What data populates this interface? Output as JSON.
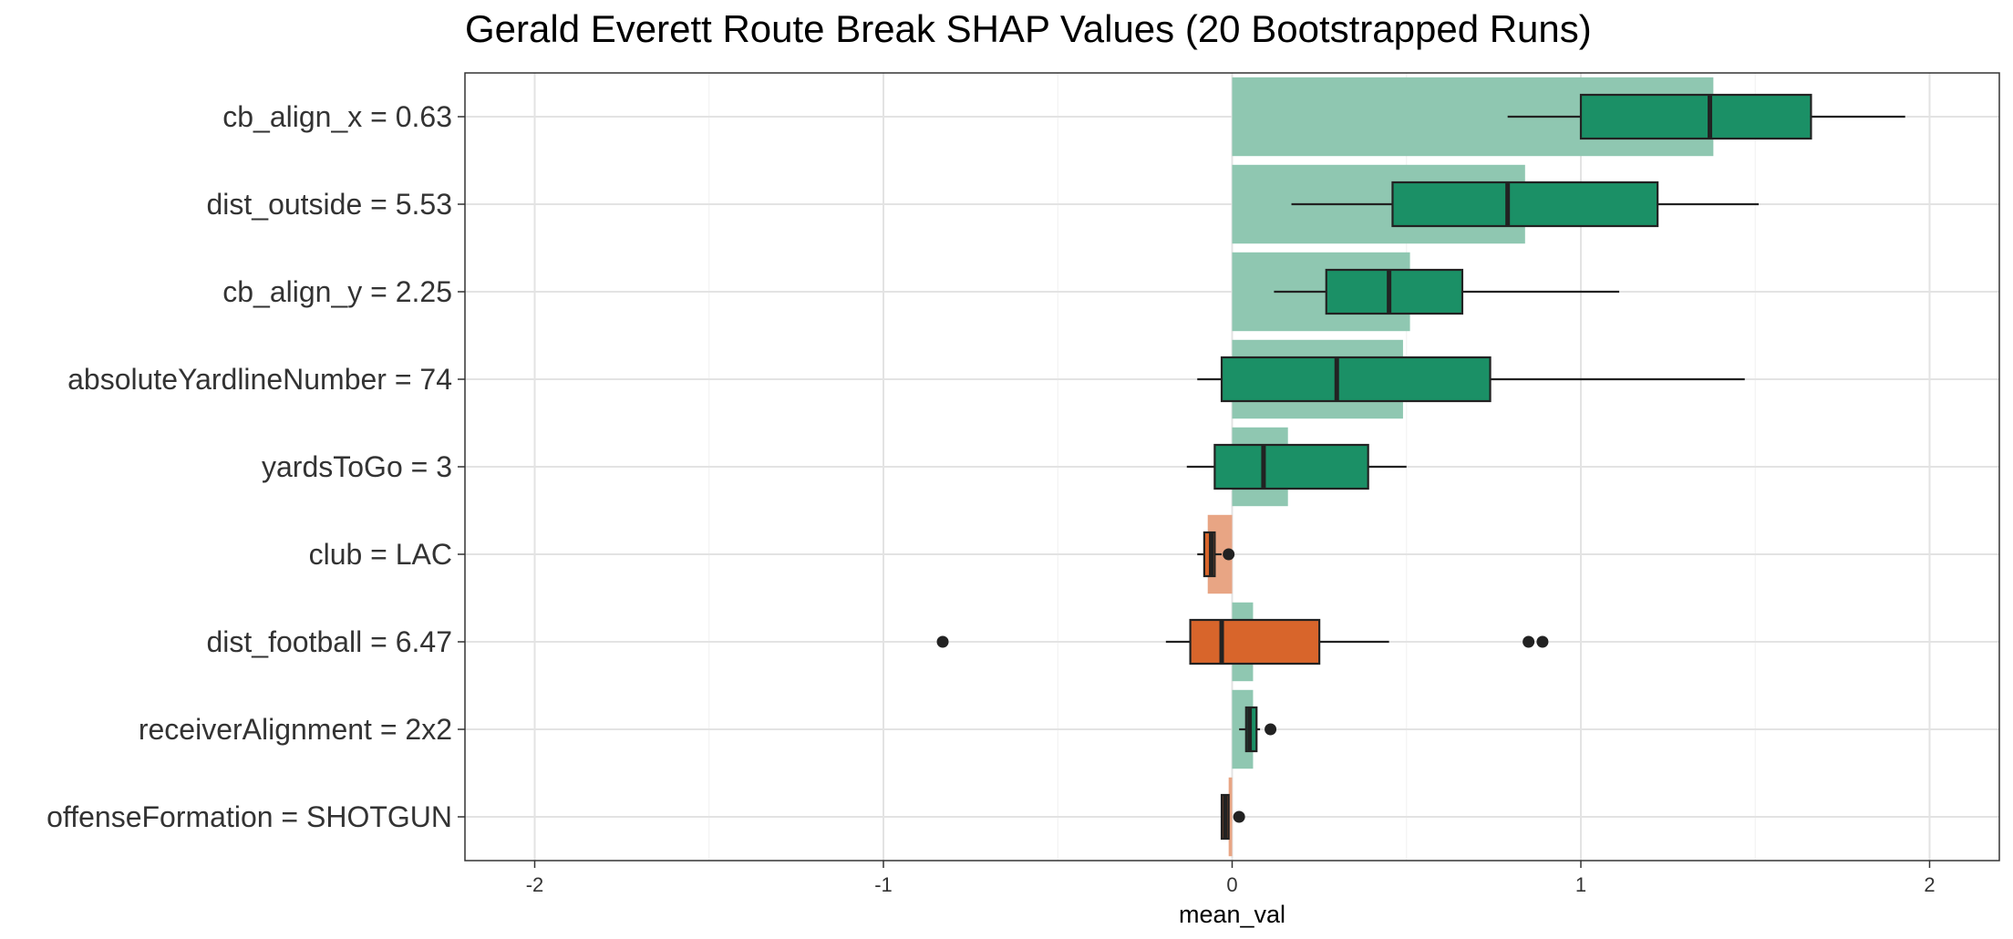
{
  "chart_data": {
    "type": "bar",
    "title": "Gerald Everett Route Break SHAP Values (20 Bootstrapped Runs)",
    "xlabel": "mean_val",
    "ylabel": "",
    "xlim": [
      -2.2,
      2.2
    ],
    "x_ticks": [
      -2,
      -1,
      0,
      1,
      2
    ],
    "grid": true,
    "legend": "none",
    "colors": {
      "positive_bar": "#8fc7b1",
      "negative_bar": "#e8a584",
      "positive_box": "#1b9066",
      "negative_box": "#d8652b",
      "box_outline": "#222222"
    },
    "categories": [
      "cb_align_x = 0.63",
      "dist_outside = 5.53",
      "cb_align_y = 2.25",
      "absoluteYardlineNumber = 74",
      "yardsToGo = 3",
      "club = LAC",
      "dist_football = 6.47",
      "receiverAlignment = 2x2",
      "offenseFormation = SHOTGUN"
    ],
    "values": [
      1.38,
      0.84,
      0.51,
      0.49,
      0.16,
      -0.07,
      0.06,
      0.06,
      -0.01
    ],
    "boxplots": [
      {
        "whisker_low": 0.79,
        "q1": 1.0,
        "median": 1.37,
        "q3": 1.66,
        "whisker_high": 1.93,
        "outliers": []
      },
      {
        "whisker_low": 0.17,
        "q1": 0.46,
        "median": 0.79,
        "q3": 1.22,
        "whisker_high": 1.51,
        "outliers": []
      },
      {
        "whisker_low": 0.12,
        "q1": 0.27,
        "median": 0.45,
        "q3": 0.66,
        "whisker_high": 1.11,
        "outliers": []
      },
      {
        "whisker_low": -0.1,
        "q1": -0.03,
        "median": 0.3,
        "q3": 0.74,
        "whisker_high": 1.47,
        "outliers": []
      },
      {
        "whisker_low": -0.13,
        "q1": -0.05,
        "median": 0.09,
        "q3": 0.39,
        "whisker_high": 0.5,
        "outliers": []
      },
      {
        "whisker_low": -0.1,
        "q1": -0.08,
        "median": -0.06,
        "q3": -0.05,
        "whisker_high": -0.03,
        "outliers": [
          -0.01
        ]
      },
      {
        "whisker_low": -0.19,
        "q1": -0.12,
        "median": -0.03,
        "q3": 0.25,
        "whisker_high": 0.45,
        "outliers": [
          -0.83,
          0.85,
          0.89
        ]
      },
      {
        "whisker_low": 0.02,
        "q1": 0.04,
        "median": 0.05,
        "q3": 0.07,
        "whisker_high": 0.08,
        "outliers": [
          0.11
        ]
      },
      {
        "whisker_low": -0.03,
        "q1": -0.03,
        "median": -0.02,
        "q3": -0.01,
        "whisker_high": -0.01,
        "outliers": [
          0.02
        ]
      }
    ]
  }
}
